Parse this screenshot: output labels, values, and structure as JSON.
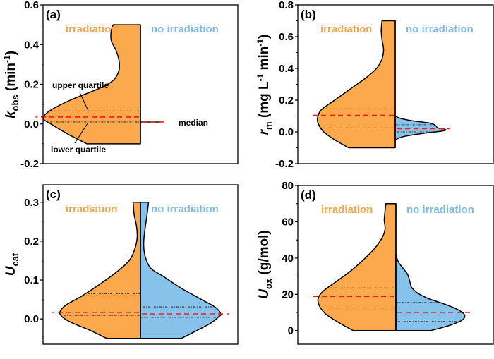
{
  "colors": {
    "irradiation": "#FCA94E",
    "no_irradiation": "#87C2EA",
    "irradiation_text": "#F9A54A",
    "no_irradiation_text": "#7DBBE6",
    "median": "#FF1A1A",
    "quartile": "#333333",
    "outline": "#000000"
  },
  "chart_data": [
    {
      "type": "violin",
      "panel": "(a)",
      "ylabel_main": "k",
      "ylabel_sub": "obs",
      "ylabel_rest": " (min",
      "ylabel_sup": "-1",
      "ylabel_end": ")",
      "ylim": [
        -0.2,
        0.6
      ],
      "yticks": [
        -0.2,
        0.0,
        0.2,
        0.4,
        0.6
      ],
      "ytick_labels": [
        "-0.2",
        "0.0",
        "0.2",
        "0.4",
        "0.6"
      ],
      "minor_ticks": [
        -0.1,
        0.1,
        0.3,
        0.5
      ],
      "legend": [
        "irradiation",
        "no irradiation"
      ],
      "annotations": [
        "upper quartile",
        "median",
        "lower quartile"
      ],
      "series": [
        {
          "name": "irradiation",
          "side": "left",
          "min": -0.1,
          "max": 0.5,
          "q1": 0.01,
          "median": 0.035,
          "q3": 0.065,
          "profile": [
            [
              -0.1,
              0.55
            ],
            [
              -0.05,
              0.75
            ],
            [
              0.0,
              0.92
            ],
            [
              0.03,
              1.0
            ],
            [
              0.07,
              0.92
            ],
            [
              0.12,
              0.72
            ],
            [
              0.18,
              0.42
            ],
            [
              0.22,
              0.28
            ],
            [
              0.27,
              0.22
            ],
            [
              0.32,
              0.22
            ],
            [
              0.37,
              0.25
            ],
            [
              0.42,
              0.3
            ],
            [
              0.47,
              0.3
            ],
            [
              0.5,
              0.28
            ]
          ]
        },
        {
          "name": "no irradiation",
          "side": "right",
          "min": 0.01,
          "max": 0.01,
          "q1": 0.01,
          "median": 0.01,
          "q3": 0.01,
          "profile": []
        }
      ]
    },
    {
      "type": "violin",
      "panel": "(b)",
      "ylabel_main": "r",
      "ylabel_sub": "m",
      "ylabel_rest": " (mg L",
      "ylabel_sup": "-1",
      "ylabel_mid": " min",
      "ylabel_sup2": "-1",
      "ylabel_end": ")",
      "ylim": [
        -0.2,
        0.8
      ],
      "yticks": [
        -0.2,
        0.0,
        0.2,
        0.4,
        0.6,
        0.8
      ],
      "ytick_labels": [
        "-0.2",
        "0.0",
        "0.2",
        "0.4",
        "0.6",
        "0.8"
      ],
      "minor_ticks": [
        -0.1,
        0.1,
        0.3,
        0.5,
        0.7
      ],
      "legend": [
        "irradiation",
        "no irradiation"
      ],
      "series": [
        {
          "name": "irradiation",
          "side": "left",
          "min": -0.1,
          "max": 0.7,
          "q1": 0.025,
          "median": 0.105,
          "q3": 0.145,
          "profile": [
            [
              -0.1,
              0.6
            ],
            [
              -0.05,
              0.78
            ],
            [
              0.0,
              0.92
            ],
            [
              0.05,
              0.99
            ],
            [
              0.09,
              1.0
            ],
            [
              0.14,
              0.95
            ],
            [
              0.2,
              0.78
            ],
            [
              0.27,
              0.58
            ],
            [
              0.34,
              0.38
            ],
            [
              0.4,
              0.24
            ],
            [
              0.46,
              0.17
            ],
            [
              0.52,
              0.15
            ],
            [
              0.58,
              0.17
            ],
            [
              0.64,
              0.18
            ],
            [
              0.7,
              0.17
            ]
          ]
        },
        {
          "name": "no irradiation",
          "side": "right",
          "min": -0.05,
          "max": 0.1,
          "q1": 0.0,
          "median": 0.02,
          "q3": 0.045,
          "profile": [
            [
              -0.05,
              0.0
            ],
            [
              -0.03,
              0.1
            ],
            [
              -0.01,
              0.35
            ],
            [
              0.005,
              0.6
            ],
            [
              0.015,
              0.65
            ],
            [
              0.025,
              0.55
            ],
            [
              0.04,
              0.52
            ],
            [
              0.055,
              0.45
            ],
            [
              0.07,
              0.22
            ],
            [
              0.085,
              0.07
            ],
            [
              0.1,
              0.0
            ]
          ]
        }
      ]
    },
    {
      "type": "violin",
      "panel": "(c)",
      "ylabel_main": "U",
      "ylabel_sub": "cat",
      "ylim": [
        -0.065,
        0.345
      ],
      "yticks": [
        0.0,
        0.1,
        0.2,
        0.3
      ],
      "ytick_labels": [
        "0.0",
        "0.1",
        "0.2",
        "0.3"
      ],
      "minor_ticks": [
        -0.05,
        0.05,
        0.15,
        0.25
      ],
      "legend": [
        "irradiation",
        "no irradiation"
      ],
      "series": [
        {
          "name": "irradiation",
          "side": "left",
          "min": -0.05,
          "max": 0.3,
          "q1": 0.009,
          "median": 0.017,
          "q3": 0.065,
          "profile": [
            [
              -0.05,
              0.42
            ],
            [
              -0.03,
              0.62
            ],
            [
              -0.01,
              0.85
            ],
            [
              0.005,
              0.97
            ],
            [
              0.018,
              1.0
            ],
            [
              0.035,
              0.93
            ],
            [
              0.06,
              0.72
            ],
            [
              0.09,
              0.5
            ],
            [
              0.12,
              0.3
            ],
            [
              0.15,
              0.14
            ],
            [
              0.18,
              0.07
            ],
            [
              0.21,
              0.04
            ],
            [
              0.24,
              0.05
            ],
            [
              0.27,
              0.08
            ],
            [
              0.3,
              0.09
            ]
          ]
        },
        {
          "name": "no irradiation",
          "side": "right",
          "min": -0.05,
          "max": 0.3,
          "q1": 0.004,
          "median": 0.013,
          "q3": 0.031,
          "profile": [
            [
              -0.05,
              0.51
            ],
            [
              -0.03,
              0.7
            ],
            [
              -0.01,
              0.88
            ],
            [
              0.005,
              0.97
            ],
            [
              0.013,
              1.0
            ],
            [
              0.03,
              0.93
            ],
            [
              0.05,
              0.76
            ],
            [
              0.08,
              0.5
            ],
            [
              0.11,
              0.28
            ],
            [
              0.13,
              0.13
            ],
            [
              0.16,
              0.06
            ],
            [
              0.19,
              0.04
            ],
            [
              0.22,
              0.05
            ],
            [
              0.25,
              0.07
            ],
            [
              0.28,
              0.09
            ],
            [
              0.3,
              0.1
            ]
          ]
        }
      ]
    },
    {
      "type": "violin",
      "panel": "(d)",
      "ylabel_main": "U",
      "ylabel_sub": "ox",
      "ylabel_rest": " (g/mol)",
      "ylim": [
        -7.5,
        80
      ],
      "yticks": [
        0,
        20,
        40,
        60,
        80
      ],
      "ytick_labels": [
        "0",
        "20",
        "40",
        "60",
        "80"
      ],
      "minor_ticks": [
        10,
        30,
        50,
        70
      ],
      "legend": [
        "irradiation",
        "no irradiation"
      ],
      "series": [
        {
          "name": "irradiation",
          "side": "left",
          "min": 0,
          "max": 70,
          "q1": 12.5,
          "median": 18.8,
          "q3": 23.5,
          "profile": [
            [
              0,
              0.55
            ],
            [
              4,
              0.72
            ],
            [
              9,
              0.9
            ],
            [
              14,
              0.99
            ],
            [
              18,
              1.0
            ],
            [
              22,
              0.93
            ],
            [
              27,
              0.77
            ],
            [
              33,
              0.58
            ],
            [
              39,
              0.42
            ],
            [
              45,
              0.28
            ],
            [
              51,
              0.18
            ],
            [
              56,
              0.14
            ],
            [
              61,
              0.15
            ],
            [
              66,
              0.14
            ],
            [
              70,
              0.13
            ]
          ]
        },
        {
          "name": "no irradiation",
          "side": "right",
          "min": 0,
          "max": 42,
          "q1": 5,
          "median": 10,
          "q3": 15.5,
          "profile": [
            [
              0,
              0.45
            ],
            [
              3,
              0.7
            ],
            [
              6,
              0.86
            ],
            [
              9,
              0.88
            ],
            [
              12,
              0.78
            ],
            [
              15,
              0.6
            ],
            [
              18,
              0.4
            ],
            [
              21,
              0.27
            ],
            [
              24,
              0.2
            ],
            [
              27,
              0.18
            ],
            [
              31,
              0.15
            ],
            [
              35,
              0.08
            ],
            [
              38,
              0.03
            ],
            [
              42,
              0.0
            ]
          ]
        }
      ]
    }
  ]
}
